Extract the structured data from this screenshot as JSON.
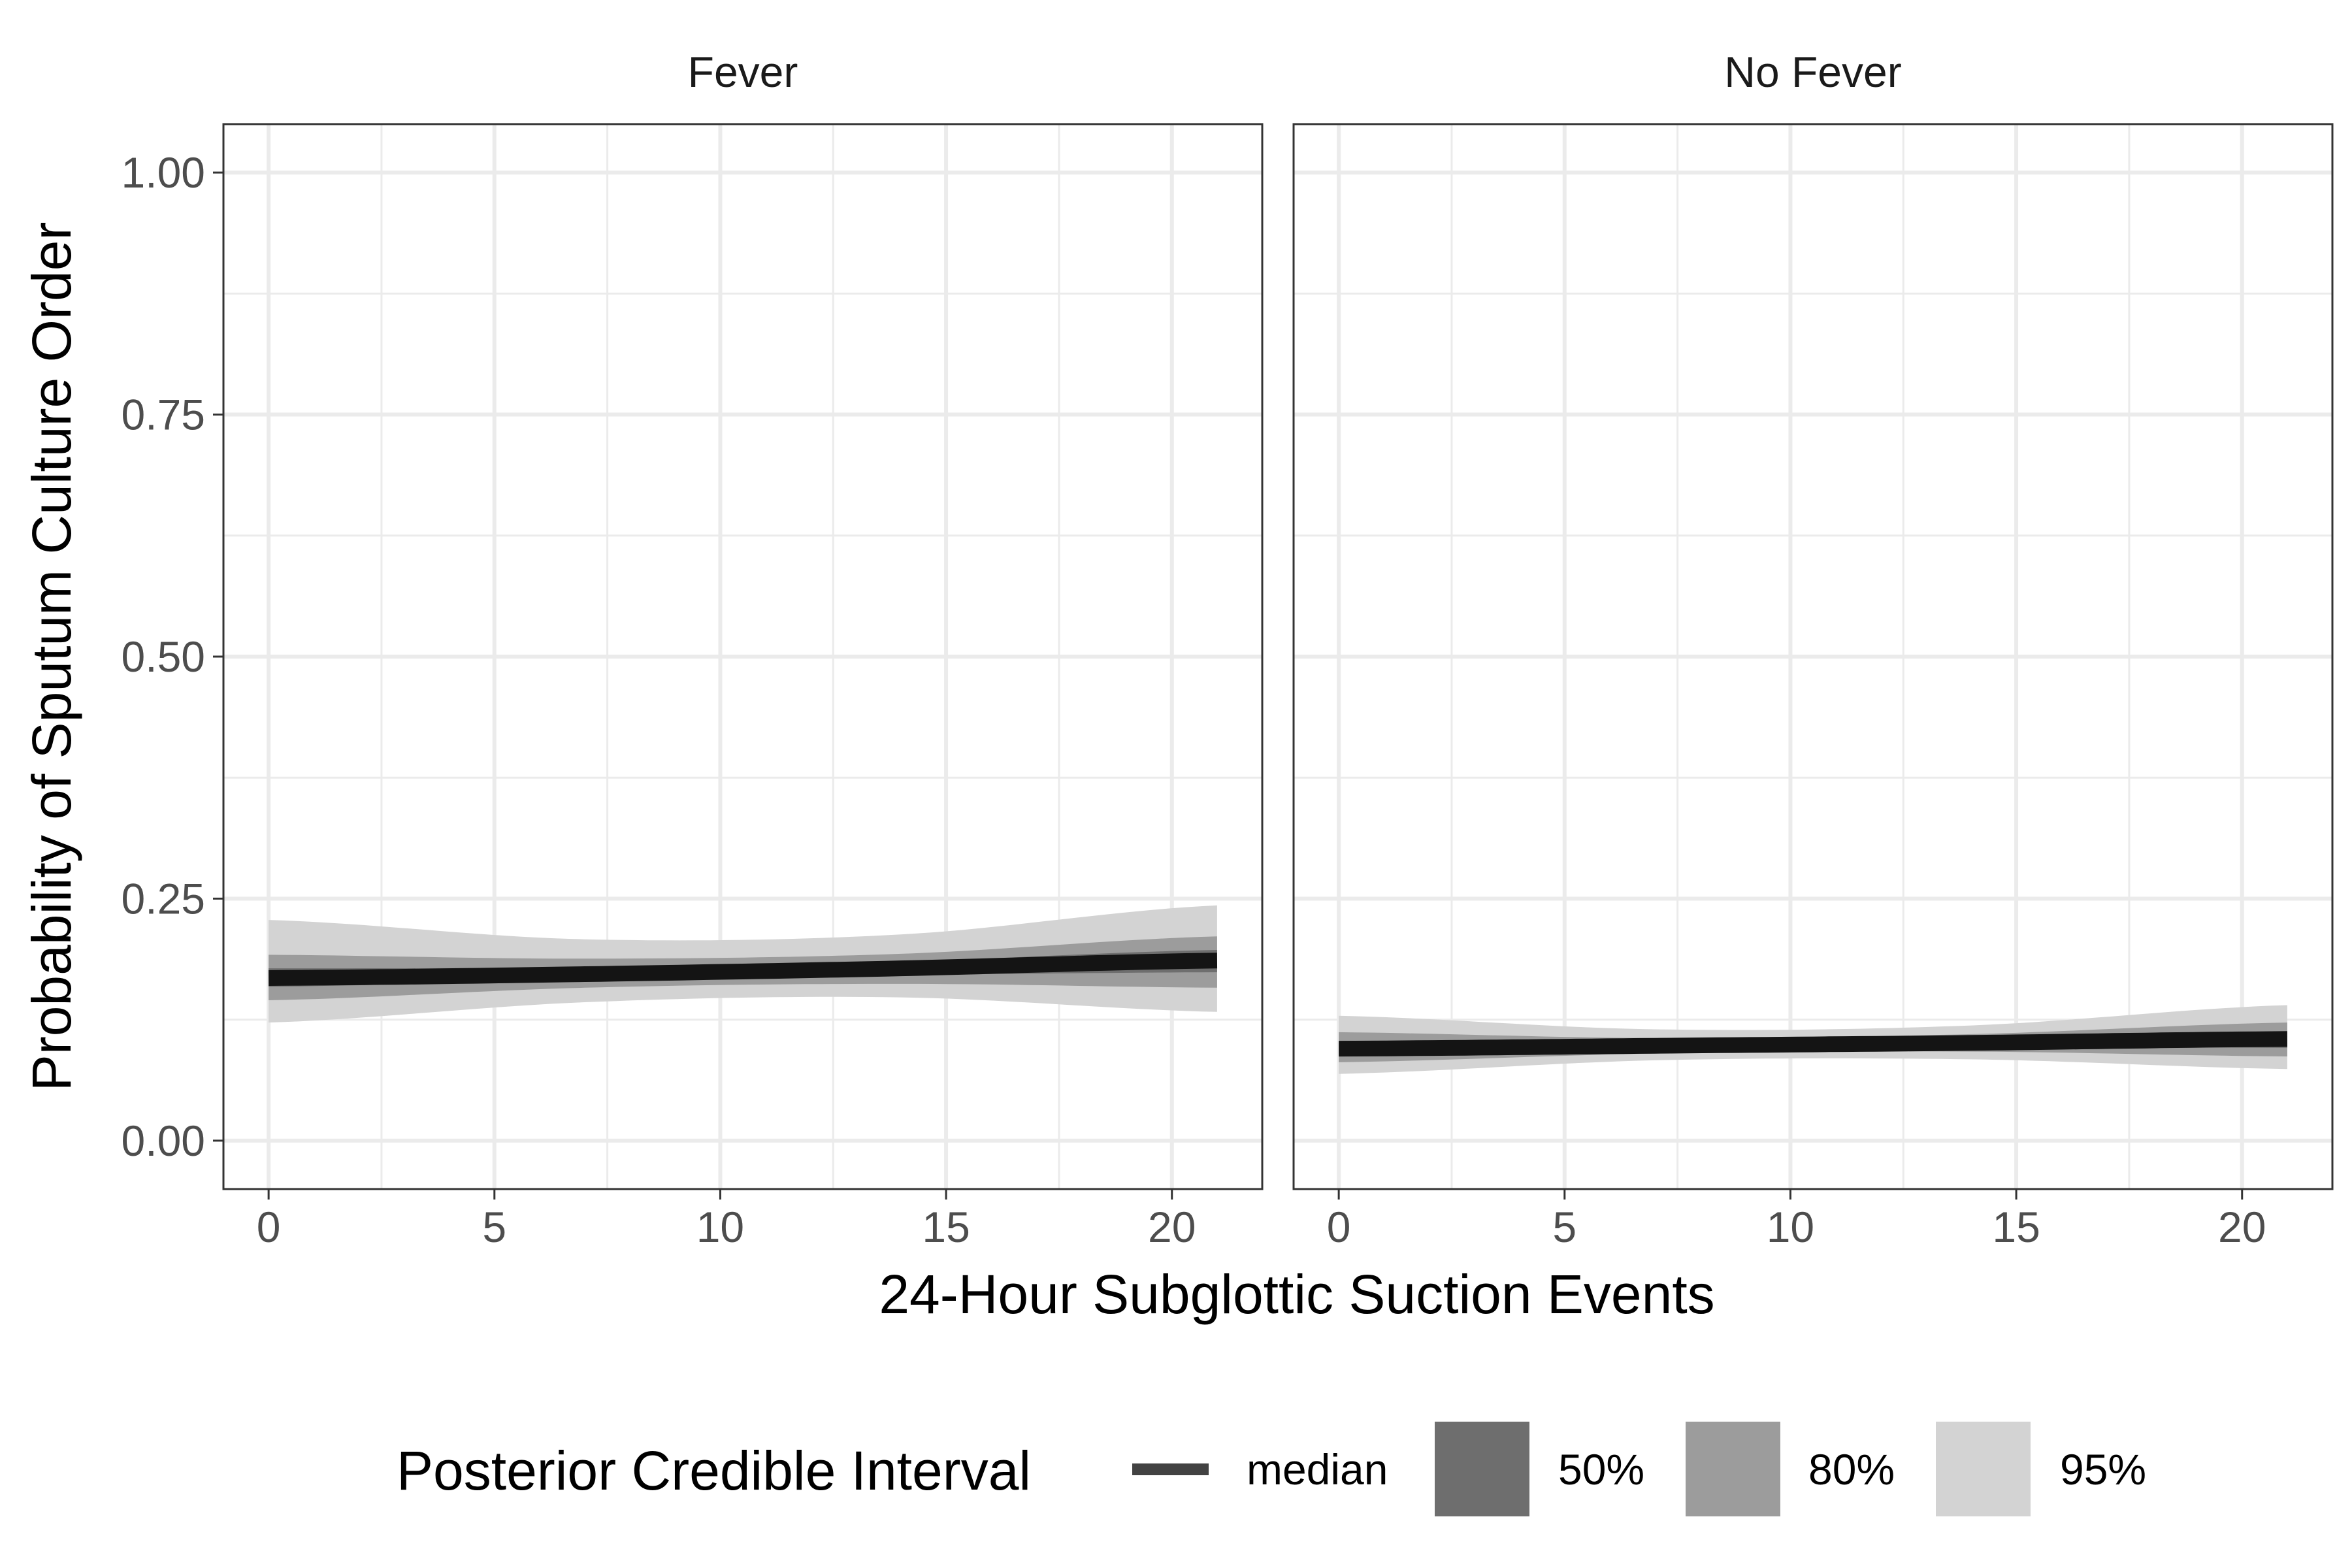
{
  "chart_data": {
    "type": "area",
    "xlabel": "24-Hour Subglottic Suction Events",
    "ylabel": "Probability of Sputum Culture Order",
    "xlim": [
      -1,
      22
    ],
    "ylim": [
      -0.05,
      1.05
    ],
    "x_ticks": [
      0,
      5,
      10,
      15,
      20
    ],
    "x_tick_labels": [
      "0",
      "5",
      "10",
      "15",
      "20"
    ],
    "y_ticks": [
      0,
      0.25,
      0.5,
      0.75,
      1
    ],
    "y_tick_labels": [
      "0.00",
      "0.25",
      "0.50",
      "0.75",
      "1.00"
    ],
    "grid": true,
    "legend": {
      "title": "Posterior Credible Interval",
      "position": "bottom",
      "items": [
        {
          "label": "median",
          "kind": "line",
          "color": "#424242"
        },
        {
          "label": "50%",
          "kind": "fill",
          "color": "#6e6e6e"
        },
        {
          "label": "80%",
          "kind": "fill",
          "color": "#9c9c9c"
        },
        {
          "label": "95%",
          "kind": "fill",
          "color": "#d3d3d3"
        }
      ]
    },
    "colors": {
      "median": "#141414",
      "ci50": "#6e6e6e",
      "ci80": "#9c9c9c",
      "ci95": "#d3d3d3"
    },
    "panels": [
      {
        "title": "Fever",
        "x": [
          0,
          7,
          14,
          21
        ],
        "median": [
          0.168,
          0.172,
          0.178,
          0.186
        ],
        "ci50": {
          "lower": [
            0.159,
            0.166,
            0.171,
            0.174
          ],
          "upper": [
            0.178,
            0.179,
            0.185,
            0.197
          ]
        },
        "ci80": {
          "lower": [
            0.145,
            0.158,
            0.162,
            0.158
          ],
          "upper": [
            0.192,
            0.188,
            0.193,
            0.211
          ]
        },
        "ci95": {
          "lower": [
            0.122,
            0.143,
            0.148,
            0.133
          ],
          "upper": [
            0.228,
            0.208,
            0.213,
            0.243
          ]
        }
      },
      {
        "title": "No Fever",
        "x": [
          0,
          7,
          14,
          21
        ],
        "median": [
          0.095,
          0.098,
          0.101,
          0.105
        ],
        "ci50": {
          "lower": [
            0.088,
            0.094,
            0.097,
            0.096
          ],
          "upper": [
            0.101,
            0.102,
            0.106,
            0.113
          ]
        },
        "ci80": {
          "lower": [
            0.081,
            0.09,
            0.092,
            0.087
          ],
          "upper": [
            0.112,
            0.106,
            0.11,
            0.122
          ]
        },
        "ci95": {
          "lower": [
            0.069,
            0.083,
            0.084,
            0.074
          ],
          "upper": [
            0.129,
            0.115,
            0.119,
            0.14
          ]
        }
      }
    ]
  }
}
